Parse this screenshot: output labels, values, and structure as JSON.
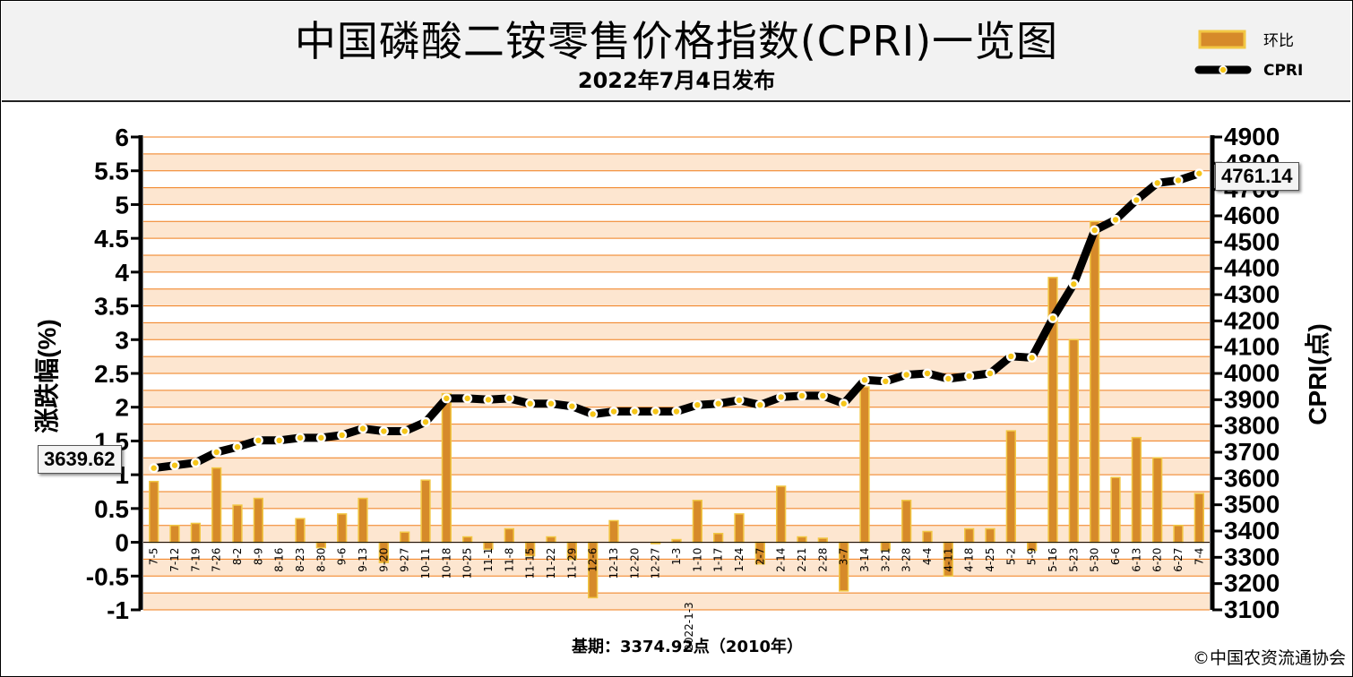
{
  "title": "中国磷酸二铵零售价格指数(CPRI)一览图",
  "subtitle": "2022年7月4日发布",
  "footer": {
    "base_label": "基期：3374.92点（2010年）",
    "copyright": "©中国农资流通协会"
  },
  "callouts": {
    "first_value": "3639.62",
    "last_value": "4761.14"
  },
  "colors": {
    "band_light": "#fde6d0",
    "band_white": "#ffffff",
    "grid": "#f07d1a",
    "bar_fill": "#d68a2a",
    "bar_edge": "#f2c744",
    "line": "#000000",
    "marker": "#f5c518"
  },
  "chart_data": {
    "type": "bar+line",
    "categories": [
      "7-5",
      "7-12",
      "7-19",
      "7-26",
      "8-2",
      "8-9",
      "8-16",
      "8-23",
      "8-30",
      "9-6",
      "9-13",
      "9-20",
      "9-27",
      "10-11",
      "10-18",
      "10-25",
      "11-1",
      "11-8",
      "11-15",
      "11-22",
      "11-29",
      "12-6",
      "12-13",
      "12-20",
      "12-27",
      "1-3",
      "1-10",
      "1-17",
      "1-24",
      "2-7",
      "2-14",
      "2-21",
      "2-28",
      "3-7",
      "3-14",
      "3-21",
      "3-28",
      "4-4",
      "4-11",
      "4-18",
      "4-25",
      "5-2",
      "5-9",
      "5-16",
      "5-23",
      "5-30",
      "6-6",
      "6-13",
      "6-20",
      "6-27",
      "7-4"
    ],
    "year_marker": {
      "category": "1-3",
      "label": "2022-1-3"
    },
    "left_axis": {
      "label": "涨跌幅(%)",
      "min": -1,
      "max": 6,
      "ticks": [
        "6",
        "5.5",
        "5",
        "4.5",
        "4",
        "3.5",
        "3",
        "2.5",
        "2",
        "1.5",
        "1",
        "0.5",
        "0",
        "-0.5",
        "-1"
      ]
    },
    "right_axis": {
      "label": "CPRI(点)",
      "min": 3100,
      "max": 4900,
      "ticks": [
        "4900",
        "4800",
        "4700",
        "4600",
        "4500",
        "4400",
        "4300",
        "4200",
        "4100",
        "4000",
        "3900",
        "3800",
        "3700",
        "3600",
        "3500",
        "3400",
        "3300",
        "3200",
        "3100"
      ]
    },
    "series": [
      {
        "name": "环比",
        "axis": "left",
        "type": "bar",
        "values": [
          0.9,
          0.25,
          0.28,
          1.1,
          0.55,
          0.65,
          0.0,
          0.35,
          -0.08,
          0.42,
          0.65,
          -0.3,
          0.15,
          0.92,
          2.2,
          0.08,
          -0.1,
          0.2,
          -0.2,
          0.08,
          -0.25,
          -0.82,
          0.32,
          0.0,
          -0.02,
          0.04,
          0.62,
          0.13,
          0.42,
          -0.32,
          0.83,
          0.08,
          0.06,
          -0.72,
          2.3,
          -0.12,
          0.62,
          0.16,
          -0.5,
          0.2,
          0.2,
          1.65,
          -0.12,
          3.92,
          3.0,
          4.75,
          0.96,
          1.55,
          1.25,
          0.25,
          0.72
        ]
      },
      {
        "name": "CPRI",
        "axis": "right",
        "type": "line",
        "values": [
          3639.62,
          3650,
          3660,
          3700,
          3720,
          3745,
          3745,
          3755,
          3755,
          3765,
          3790,
          3780,
          3780,
          3815,
          3905,
          3905,
          3900,
          3905,
          3885,
          3885,
          3875,
          3845,
          3855,
          3855,
          3855,
          3855,
          3880,
          3885,
          3898,
          3880,
          3910,
          3915,
          3915,
          3885,
          3975,
          3970,
          3995,
          4000,
          3980,
          3990,
          4000,
          4065,
          4060,
          4210,
          4340,
          4545,
          4585,
          4660,
          4725,
          4735,
          4761.14
        ]
      }
    ]
  }
}
